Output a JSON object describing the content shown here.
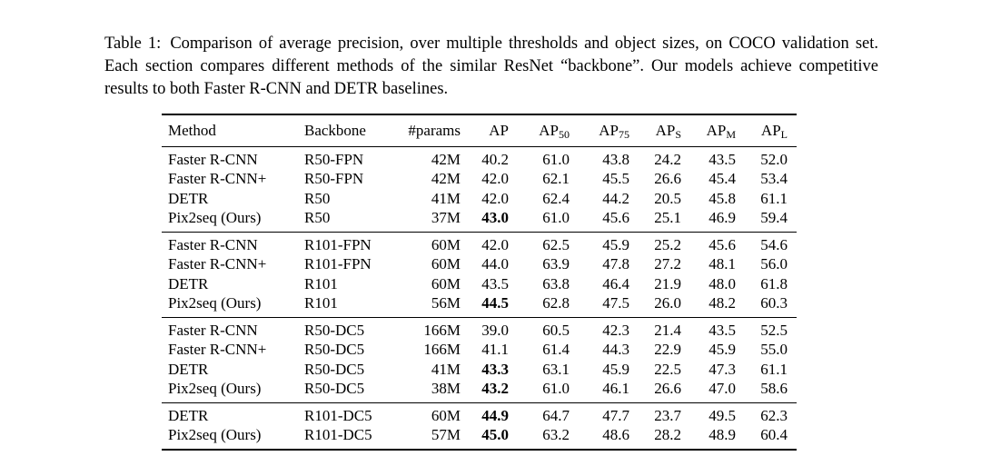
{
  "page": {
    "background": "#ffffff",
    "text_color": "#000000"
  },
  "caption": {
    "label": "Table 1:",
    "text": "Comparison of average precision, over multiple thresholds and object sizes, on COCO validation set. Each section compares different methods of the similar ResNet “backbone”. Our models achieve competitive results to both Faster R-CNN and DETR baselines."
  },
  "table": {
    "columns": [
      {
        "text": "Method",
        "sub": "",
        "align": "left"
      },
      {
        "text": "Backbone",
        "sub": "",
        "align": "left"
      },
      {
        "text": "#params",
        "sub": "",
        "align": "right"
      },
      {
        "text": "AP",
        "sub": "",
        "align": "right"
      },
      {
        "text": "AP",
        "sub": "50",
        "align": "right"
      },
      {
        "text": "AP",
        "sub": "75",
        "align": "right"
      },
      {
        "text": "AP",
        "sub": "S",
        "align": "right"
      },
      {
        "text": "AP",
        "sub": "M",
        "align": "right"
      },
      {
        "text": "AP",
        "sub": "L",
        "align": "right"
      }
    ],
    "sections": [
      {
        "rows": [
          {
            "cells": [
              "Faster R-CNN",
              "R50-FPN",
              "42M",
              "40.2",
              "61.0",
              "43.8",
              "24.2",
              "43.5",
              "52.0"
            ],
            "bold": []
          },
          {
            "cells": [
              "Faster R-CNN+",
              "R50-FPN",
              "42M",
              "42.0",
              "62.1",
              "45.5",
              "26.6",
              "45.4",
              "53.4"
            ],
            "bold": []
          },
          {
            "cells": [
              "DETR",
              "R50",
              "41M",
              "42.0",
              "62.4",
              "44.2",
              "20.5",
              "45.8",
              "61.1"
            ],
            "bold": []
          },
          {
            "cells": [
              "Pix2seq (Ours)",
              "R50",
              "37M",
              "43.0",
              "61.0",
              "45.6",
              "25.1",
              "46.9",
              "59.4"
            ],
            "bold": [
              3
            ]
          }
        ]
      },
      {
        "rows": [
          {
            "cells": [
              "Faster R-CNN",
              "R101-FPN",
              "60M",
              "42.0",
              "62.5",
              "45.9",
              "25.2",
              "45.6",
              "54.6"
            ],
            "bold": []
          },
          {
            "cells": [
              "Faster R-CNN+",
              "R101-FPN",
              "60M",
              "44.0",
              "63.9",
              "47.8",
              "27.2",
              "48.1",
              "56.0"
            ],
            "bold": []
          },
          {
            "cells": [
              "DETR",
              "R101",
              "60M",
              "43.5",
              "63.8",
              "46.4",
              "21.9",
              "48.0",
              "61.8"
            ],
            "bold": []
          },
          {
            "cells": [
              "Pix2seq (Ours)",
              "R101",
              "56M",
              "44.5",
              "62.8",
              "47.5",
              "26.0",
              "48.2",
              "60.3"
            ],
            "bold": [
              3
            ]
          }
        ]
      },
      {
        "rows": [
          {
            "cells": [
              "Faster R-CNN",
              "R50-DC5",
              "166M",
              "39.0",
              "60.5",
              "42.3",
              "21.4",
              "43.5",
              "52.5"
            ],
            "bold": []
          },
          {
            "cells": [
              "Faster R-CNN+",
              "R50-DC5",
              "166M",
              "41.1",
              "61.4",
              "44.3",
              "22.9",
              "45.9",
              "55.0"
            ],
            "bold": []
          },
          {
            "cells": [
              "DETR",
              "R50-DC5",
              "41M",
              "43.3",
              "63.1",
              "45.9",
              "22.5",
              "47.3",
              "61.1"
            ],
            "bold": [
              3
            ]
          },
          {
            "cells": [
              "Pix2seq (Ours)",
              "R50-DC5",
              "38M",
              "43.2",
              "61.0",
              "46.1",
              "26.6",
              "47.0",
              "58.6"
            ],
            "bold": [
              3
            ]
          }
        ]
      },
      {
        "rows": [
          {
            "cells": [
              "DETR",
              "R101-DC5",
              "60M",
              "44.9",
              "64.7",
              "47.7",
              "23.7",
              "49.5",
              "62.3"
            ],
            "bold": [
              3
            ]
          },
          {
            "cells": [
              "Pix2seq (Ours)",
              "R101-DC5",
              "57M",
              "45.0",
              "63.2",
              "48.6",
              "28.2",
              "48.9",
              "60.4"
            ],
            "bold": [
              3
            ]
          }
        ]
      }
    ]
  }
}
